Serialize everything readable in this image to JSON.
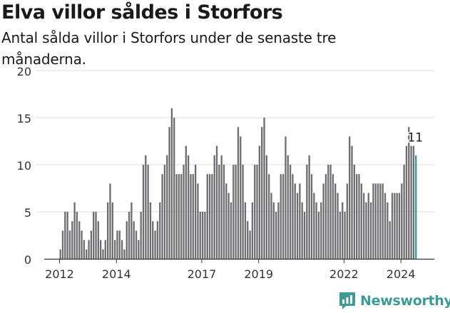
{
  "header": {
    "title": "Elva villor såldes i Storfors",
    "subtitle": "Antal sålda villor i Storfors under de senaste tre månaderna."
  },
  "brand": {
    "name": "Newsworthy",
    "icon": "newsworthy-logo-icon",
    "color": "#3d9b95"
  },
  "colors": {
    "bar": "#6d6c71",
    "highlight": "#2f9a93",
    "grid": "#dddddd",
    "axis": "#333333"
  },
  "chart_data": {
    "type": "bar",
    "title": "Elva villor såldes i Storfors",
    "subtitle": "Antal sålda villor i Storfors under de senaste tre månaderna.",
    "start": "2012-01",
    "xticks": [
      "2012",
      "2014",
      "2017",
      "2019",
      "2022",
      "2024"
    ],
    "yticks": [
      0,
      5,
      10,
      15,
      20
    ],
    "ylim": [
      0,
      20
    ],
    "grid": true,
    "values": [
      1,
      3,
      5,
      5,
      3,
      4,
      6,
      5,
      4,
      3,
      2,
      1,
      2,
      3,
      5,
      5,
      4,
      2,
      1,
      2,
      6,
      8,
      6,
      2,
      3,
      3,
      2,
      1,
      4,
      5,
      6,
      4,
      3,
      2,
      5,
      10,
      11,
      10,
      6,
      4,
      3,
      4,
      6,
      9,
      10,
      11,
      14,
      16,
      15,
      9,
      9,
      9,
      10,
      12,
      11,
      9,
      9,
      10,
      8,
      5,
      5,
      5,
      9,
      9,
      9,
      11,
      12,
      10,
      11,
      10,
      8,
      7,
      6,
      10,
      10,
      14,
      13,
      10,
      6,
      4,
      3,
      6,
      10,
      10,
      12,
      14,
      15,
      11,
      9,
      7,
      6,
      5,
      6,
      9,
      9,
      13,
      11,
      10,
      9,
      8,
      7,
      8,
      6,
      5,
      10,
      11,
      9,
      7,
      6,
      5,
      6,
      8,
      9,
      10,
      10,
      9,
      8,
      7,
      5,
      6,
      5,
      8,
      13,
      12,
      10,
      9,
      9,
      8,
      7,
      6,
      7,
      6,
      8,
      8,
      8,
      8,
      8,
      7,
      6,
      4,
      7,
      7,
      7,
      7,
      8,
      10,
      12,
      14,
      12,
      12,
      11
    ],
    "annotations": [
      {
        "index": 150,
        "text": "11"
      }
    ]
  }
}
